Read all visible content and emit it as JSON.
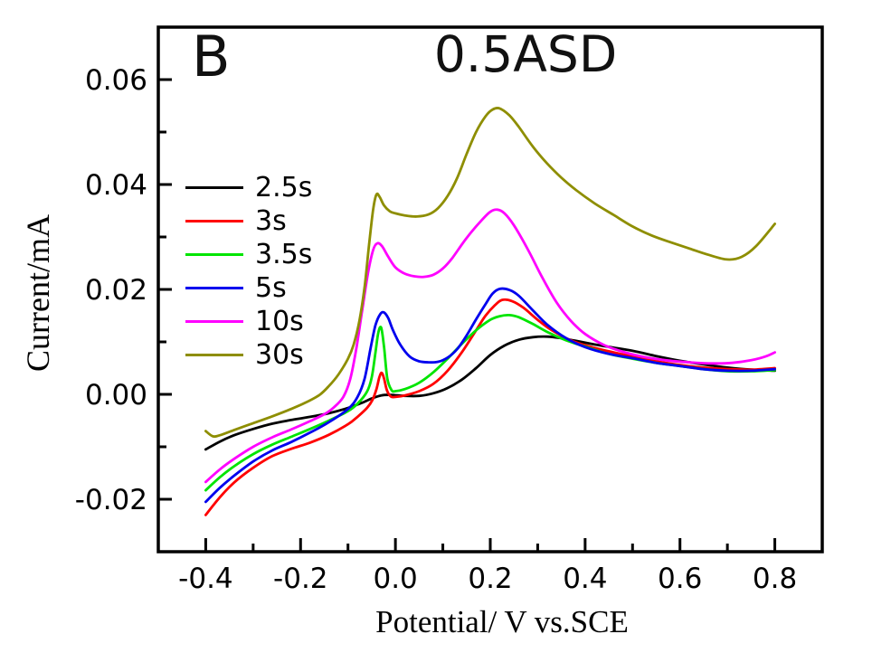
{
  "figure": {
    "panel_label": "B",
    "background_color": "#ffffff"
  },
  "chart_data": {
    "type": "line",
    "title": "0.5ASD",
    "xlabel": "Potential/ V vs.SCE",
    "ylabel": "Current/mA",
    "xlim": [
      -0.5,
      0.9
    ],
    "ylim": [
      -0.03,
      0.07
    ],
    "x_major_ticks": [
      -0.4,
      -0.2,
      0.0,
      0.2,
      0.4,
      0.6,
      0.8
    ],
    "x_minor_ticks": [
      -0.3,
      -0.1,
      0.1,
      0.3,
      0.5,
      0.7
    ],
    "y_major_ticks": [
      -0.02,
      0.0,
      0.02,
      0.04,
      0.06
    ],
    "y_minor_ticks": [
      -0.01,
      0.01,
      0.03,
      0.05
    ],
    "grid": false,
    "legend_position": "upper-left-inside",
    "axis_color": "#000000",
    "series": [
      {
        "name": "2.5s",
        "color": "#000000",
        "x": [
          -0.4,
          -0.37,
          -0.34,
          -0.3,
          -0.26,
          -0.22,
          -0.18,
          -0.14,
          -0.1,
          -0.07,
          -0.05,
          -0.03,
          -0.01,
          0.02,
          0.05,
          0.08,
          0.11,
          0.14,
          0.17,
          0.2,
          0.23,
          0.26,
          0.29,
          0.32,
          0.35,
          0.38,
          0.42,
          0.46,
          0.5,
          0.55,
          0.6,
          0.65,
          0.7,
          0.75,
          0.8
        ],
        "y": [
          -0.0105,
          -0.009,
          -0.0078,
          -0.0066,
          -0.0056,
          -0.0049,
          -0.0043,
          -0.0036,
          -0.0026,
          -0.0016,
          -0.0008,
          -0.0002,
          -0.0001,
          -0.0003,
          -0.0003,
          0.0002,
          0.0012,
          0.0028,
          0.005,
          0.0075,
          0.0093,
          0.0104,
          0.0109,
          0.011,
          0.0107,
          0.0102,
          0.0095,
          0.0089,
          0.0083,
          0.0073,
          0.0064,
          0.0057,
          0.0051,
          0.0047,
          0.0045
        ]
      },
      {
        "name": "3s",
        "color": "#ff0000",
        "x": [
          -0.4,
          -0.37,
          -0.34,
          -0.3,
          -0.26,
          -0.22,
          -0.18,
          -0.14,
          -0.1,
          -0.08,
          -0.06,
          -0.048,
          -0.04,
          -0.034,
          -0.029,
          -0.024,
          -0.018,
          -0.01,
          0.0,
          0.02,
          0.05,
          0.08,
          0.11,
          0.14,
          0.17,
          0.19,
          0.21,
          0.225,
          0.245,
          0.27,
          0.3,
          0.33,
          0.37,
          0.41,
          0.45,
          0.5,
          0.55,
          0.6,
          0.65,
          0.7,
          0.75,
          0.8
        ],
        "y": [
          -0.023,
          -0.0196,
          -0.0168,
          -0.014,
          -0.0118,
          -0.0104,
          -0.0092,
          -0.0077,
          -0.0057,
          -0.0043,
          -0.0026,
          -0.001,
          0.001,
          0.0032,
          0.0041,
          0.003,
          0.0008,
          -0.0004,
          -0.0005,
          -0.0002,
          0.0006,
          0.002,
          0.0045,
          0.008,
          0.0122,
          0.015,
          0.017,
          0.018,
          0.0178,
          0.0165,
          0.0142,
          0.0122,
          0.0103,
          0.0091,
          0.0082,
          0.0072,
          0.0063,
          0.0056,
          0.0051,
          0.0048,
          0.0047,
          0.005
        ]
      },
      {
        "name": "3.5s",
        "color": "#00e500",
        "x": [
          -0.4,
          -0.37,
          -0.34,
          -0.3,
          -0.26,
          -0.22,
          -0.18,
          -0.14,
          -0.1,
          -0.08,
          -0.06,
          -0.05,
          -0.042,
          -0.036,
          -0.03,
          -0.024,
          -0.017,
          -0.008,
          0.0,
          0.02,
          0.05,
          0.08,
          0.11,
          0.14,
          0.17,
          0.2,
          0.22,
          0.24,
          0.26,
          0.29,
          0.32,
          0.36,
          0.4,
          0.45,
          0.5,
          0.55,
          0.6,
          0.65,
          0.7,
          0.75,
          0.8
        ],
        "y": [
          -0.0183,
          -0.0158,
          -0.0137,
          -0.0114,
          -0.0096,
          -0.0081,
          -0.0066,
          -0.005,
          -0.0032,
          -0.0018,
          0.0005,
          0.0032,
          0.008,
          0.0118,
          0.0127,
          0.009,
          0.003,
          0.0008,
          0.0006,
          0.001,
          0.0022,
          0.0042,
          0.0068,
          0.0096,
          0.0122,
          0.0142,
          0.0149,
          0.0151,
          0.0147,
          0.0134,
          0.0119,
          0.0103,
          0.0091,
          0.0077,
          0.0068,
          0.006,
          0.0054,
          0.0048,
          0.0044,
          0.0044,
          0.0046
        ]
      },
      {
        "name": "5s",
        "color": "#0000ee",
        "x": [
          -0.4,
          -0.37,
          -0.34,
          -0.3,
          -0.26,
          -0.22,
          -0.18,
          -0.14,
          -0.1,
          -0.08,
          -0.065,
          -0.052,
          -0.042,
          -0.032,
          -0.024,
          -0.015,
          -0.005,
          0.01,
          0.03,
          0.05,
          0.07,
          0.09,
          0.11,
          0.13,
          0.15,
          0.17,
          0.19,
          0.205,
          0.22,
          0.24,
          0.26,
          0.29,
          0.32,
          0.36,
          0.4,
          0.45,
          0.5,
          0.55,
          0.6,
          0.65,
          0.7,
          0.75,
          0.8
        ],
        "y": [
          -0.0205,
          -0.0178,
          -0.0155,
          -0.0128,
          -0.0107,
          -0.0091,
          -0.0073,
          -0.0053,
          -0.0028,
          -0.0005,
          0.003,
          0.009,
          0.0132,
          0.0153,
          0.0156,
          0.0145,
          0.0122,
          0.0095,
          0.0072,
          0.0063,
          0.0061,
          0.0062,
          0.007,
          0.0086,
          0.0112,
          0.0143,
          0.0172,
          0.0192,
          0.0201,
          0.0199,
          0.0188,
          0.016,
          0.0133,
          0.0107,
          0.009,
          0.0077,
          0.0069,
          0.006,
          0.0054,
          0.0048,
          0.0045,
          0.0045,
          0.0048
        ]
      },
      {
        "name": "10s",
        "color": "#ff00ff",
        "x": [
          -0.4,
          -0.37,
          -0.34,
          -0.3,
          -0.26,
          -0.22,
          -0.18,
          -0.15,
          -0.13,
          -0.11,
          -0.095,
          -0.082,
          -0.07,
          -0.058,
          -0.047,
          -0.038,
          -0.028,
          -0.015,
          0.0,
          0.02,
          0.04,
          0.06,
          0.08,
          0.1,
          0.12,
          0.15,
          0.18,
          0.2,
          0.215,
          0.23,
          0.25,
          0.28,
          0.31,
          0.34,
          0.37,
          0.4,
          0.44,
          0.48,
          0.52,
          0.57,
          0.62,
          0.67,
          0.71,
          0.75,
          0.78,
          0.8
        ],
        "y": [
          -0.0167,
          -0.0143,
          -0.0123,
          -0.01,
          -0.0082,
          -0.0067,
          -0.0051,
          -0.0038,
          -0.0025,
          -0.0005,
          0.003,
          0.009,
          0.016,
          0.023,
          0.0275,
          0.0288,
          0.0282,
          0.0262,
          0.0242,
          0.023,
          0.0225,
          0.0224,
          0.0228,
          0.024,
          0.026,
          0.0298,
          0.033,
          0.0348,
          0.0352,
          0.0345,
          0.0322,
          0.0275,
          0.0222,
          0.0175,
          0.014,
          0.0115,
          0.0094,
          0.0081,
          0.0072,
          0.0065,
          0.0061,
          0.0059,
          0.006,
          0.0065,
          0.0072,
          0.008
        ]
      },
      {
        "name": "30s",
        "color": "#8e8e00",
        "x": [
          -0.4,
          -0.385,
          -0.37,
          -0.34,
          -0.3,
          -0.26,
          -0.22,
          -0.19,
          -0.16,
          -0.14,
          -0.12,
          -0.1,
          -0.088,
          -0.076,
          -0.065,
          -0.055,
          -0.047,
          -0.04,
          -0.033,
          -0.024,
          -0.012,
          0.0,
          0.02,
          0.045,
          0.07,
          0.09,
          0.11,
          0.13,
          0.15,
          0.17,
          0.19,
          0.205,
          0.22,
          0.24,
          0.26,
          0.29,
          0.32,
          0.35,
          0.38,
          0.42,
          0.46,
          0.5,
          0.54,
          0.58,
          0.62,
          0.66,
          0.7,
          0.73,
          0.76,
          0.8
        ],
        "y": [
          -0.007,
          -0.008,
          -0.0078,
          -0.0068,
          -0.0055,
          -0.0042,
          -0.0028,
          -0.0016,
          -0.0001,
          0.0016,
          0.0038,
          0.0068,
          0.0095,
          0.014,
          0.0205,
          0.029,
          0.0352,
          0.0381,
          0.0376,
          0.036,
          0.0349,
          0.0345,
          0.0341,
          0.0339,
          0.0343,
          0.0355,
          0.0378,
          0.0412,
          0.0458,
          0.05,
          0.053,
          0.0543,
          0.0545,
          0.0532,
          0.051,
          0.0472,
          0.044,
          0.0413,
          0.039,
          0.0364,
          0.0342,
          0.032,
          0.0303,
          0.029,
          0.0278,
          0.0266,
          0.0257,
          0.0262,
          0.0282,
          0.0325
        ]
      }
    ]
  }
}
